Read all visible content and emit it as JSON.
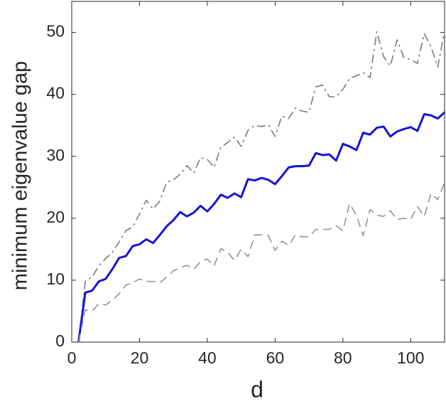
{
  "chart_data": {
    "type": "line",
    "xlabel": "d",
    "ylabel": "minimum eigenvalue gap",
    "x": [
      2,
      4,
      6,
      8,
      10,
      12,
      14,
      16,
      18,
      20,
      22,
      24,
      26,
      28,
      30,
      32,
      34,
      36,
      38,
      40,
      42,
      44,
      46,
      48,
      50,
      52,
      54,
      56,
      58,
      60,
      62,
      64,
      66,
      68,
      70,
      72,
      74,
      76,
      78,
      80,
      82,
      84,
      86,
      88,
      90,
      92,
      94,
      96,
      98,
      100,
      102,
      104,
      106,
      108,
      110
    ],
    "series": [
      {
        "color": "#7a7a7a",
        "dash": "dashdot",
        "width": 1.6,
        "values": [
          0,
          9.8,
          10.5,
          12.3,
          13.5,
          14.5,
          16.2,
          18,
          18.6,
          20.7,
          22.9,
          21.5,
          22.8,
          25.8,
          26.2,
          27.1,
          28.5,
          27.3,
          29.8,
          29.5,
          28.2,
          31.5,
          32.2,
          33.1,
          31.6,
          34.2,
          35,
          34.8,
          35.1,
          33.2,
          36.5,
          36.1,
          37.8,
          37.3,
          37.1,
          41.2,
          41.5,
          39.6,
          39.6,
          40.8,
          42.6,
          43,
          43.5,
          42.7,
          50.1,
          46.1,
          44.6,
          48.8,
          45.9,
          45.6,
          45,
          49.8,
          47.7,
          44.4,
          50.3
        ]
      },
      {
        "color": "#1414d8",
        "dash": "solid",
        "width": 3,
        "values": [
          0,
          8,
          8.3,
          9.8,
          10.2,
          11.8,
          13.6,
          13.9,
          15.5,
          15.8,
          16.6,
          16,
          17.3,
          18.7,
          19.7,
          21,
          20.3,
          20.9,
          22,
          21.1,
          22.3,
          23.8,
          23.3,
          24,
          23.4,
          26.3,
          26.1,
          26.5,
          26.2,
          25.5,
          26.8,
          28.2,
          28.4,
          28.4,
          28.5,
          30.5,
          30.2,
          30.3,
          29.3,
          32,
          31.6,
          31,
          33.8,
          33.5,
          34.6,
          34.8,
          33.2,
          34,
          34.4,
          34.7,
          34.1,
          36.8,
          36.6,
          36.1,
          37.1
        ]
      },
      {
        "color": "#939393",
        "dash": "dashed",
        "width": 1.6,
        "values": [
          0,
          5.2,
          5,
          6.2,
          6,
          6.8,
          7.8,
          9.2,
          9.6,
          10.2,
          9.8,
          9.8,
          9.6,
          10.5,
          11.5,
          12,
          12.4,
          11.8,
          13,
          13.4,
          12.3,
          15.1,
          14.5,
          13.2,
          15,
          13.8,
          17.3,
          17.3,
          17.2,
          14.8,
          16.3,
          15.6,
          17.3,
          17,
          17,
          18.2,
          18.2,
          18.2,
          18.8,
          18,
          22.4,
          20.4,
          17.2,
          21.4,
          20.5,
          20.3,
          21.2,
          19.8,
          20,
          19.8,
          21.9,
          20.3,
          24,
          23,
          25.8
        ]
      }
    ],
    "xlim": [
      0,
      110
    ],
    "ylim": [
      0,
      55
    ],
    "xticks": [
      0,
      20,
      40,
      60,
      80,
      100
    ],
    "yticks": [
      0,
      10,
      20,
      30,
      40,
      50
    ],
    "grid": false
  }
}
